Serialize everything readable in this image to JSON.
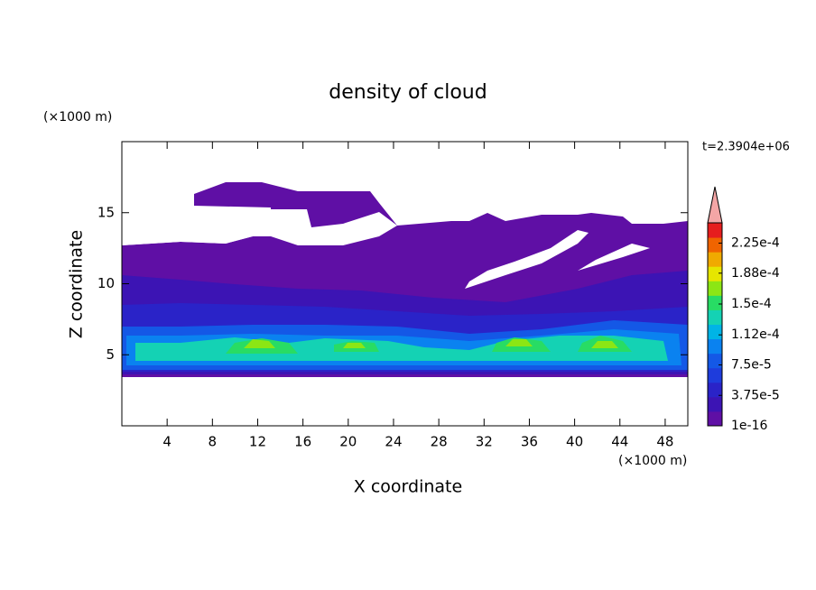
{
  "chart_data": {
    "type": "contour",
    "title": "density of cloud",
    "xlabel": "X coordinate",
    "ylabel": "Z coordinate",
    "xunit": "(×1000 m)",
    "yunit": "(×1000 m)",
    "time_label": "t=2.3904e+06",
    "xlim": [
      0,
      50
    ],
    "xticks": [
      4,
      8,
      12,
      16,
      20,
      24,
      28,
      32,
      36,
      40,
      44,
      48
    ],
    "ylim": [
      0,
      20
    ],
    "yticks": [
      5,
      10,
      15
    ],
    "clim": [
      1e-16,
      0.00025
    ],
    "cticks": [
      {
        "value": 1e-16,
        "label": "1e-16"
      },
      {
        "value": 3.75e-05,
        "label": "3.75e-5"
      },
      {
        "value": 7.5e-05,
        "label": "7.5e-5"
      },
      {
        "value": 0.000112,
        "label": "1.12e-4"
      },
      {
        "value": 0.00015,
        "label": "1.5e-4"
      },
      {
        "value": 0.000188,
        "label": "1.88e-4"
      },
      {
        "value": 0.000225,
        "label": "2.25e-4"
      }
    ],
    "colors": [
      "#5f0fa5",
      "#3c14b4",
      "#2a23c8",
      "#1e3cdc",
      "#1458e6",
      "#0a82f0",
      "#00b4e6",
      "#14d2b4",
      "#28dc64",
      "#8ce614",
      "#e6e600",
      "#f0aa00",
      "#f06400",
      "#e61e1e"
    ],
    "extend_color": "#f4a6a6"
  }
}
